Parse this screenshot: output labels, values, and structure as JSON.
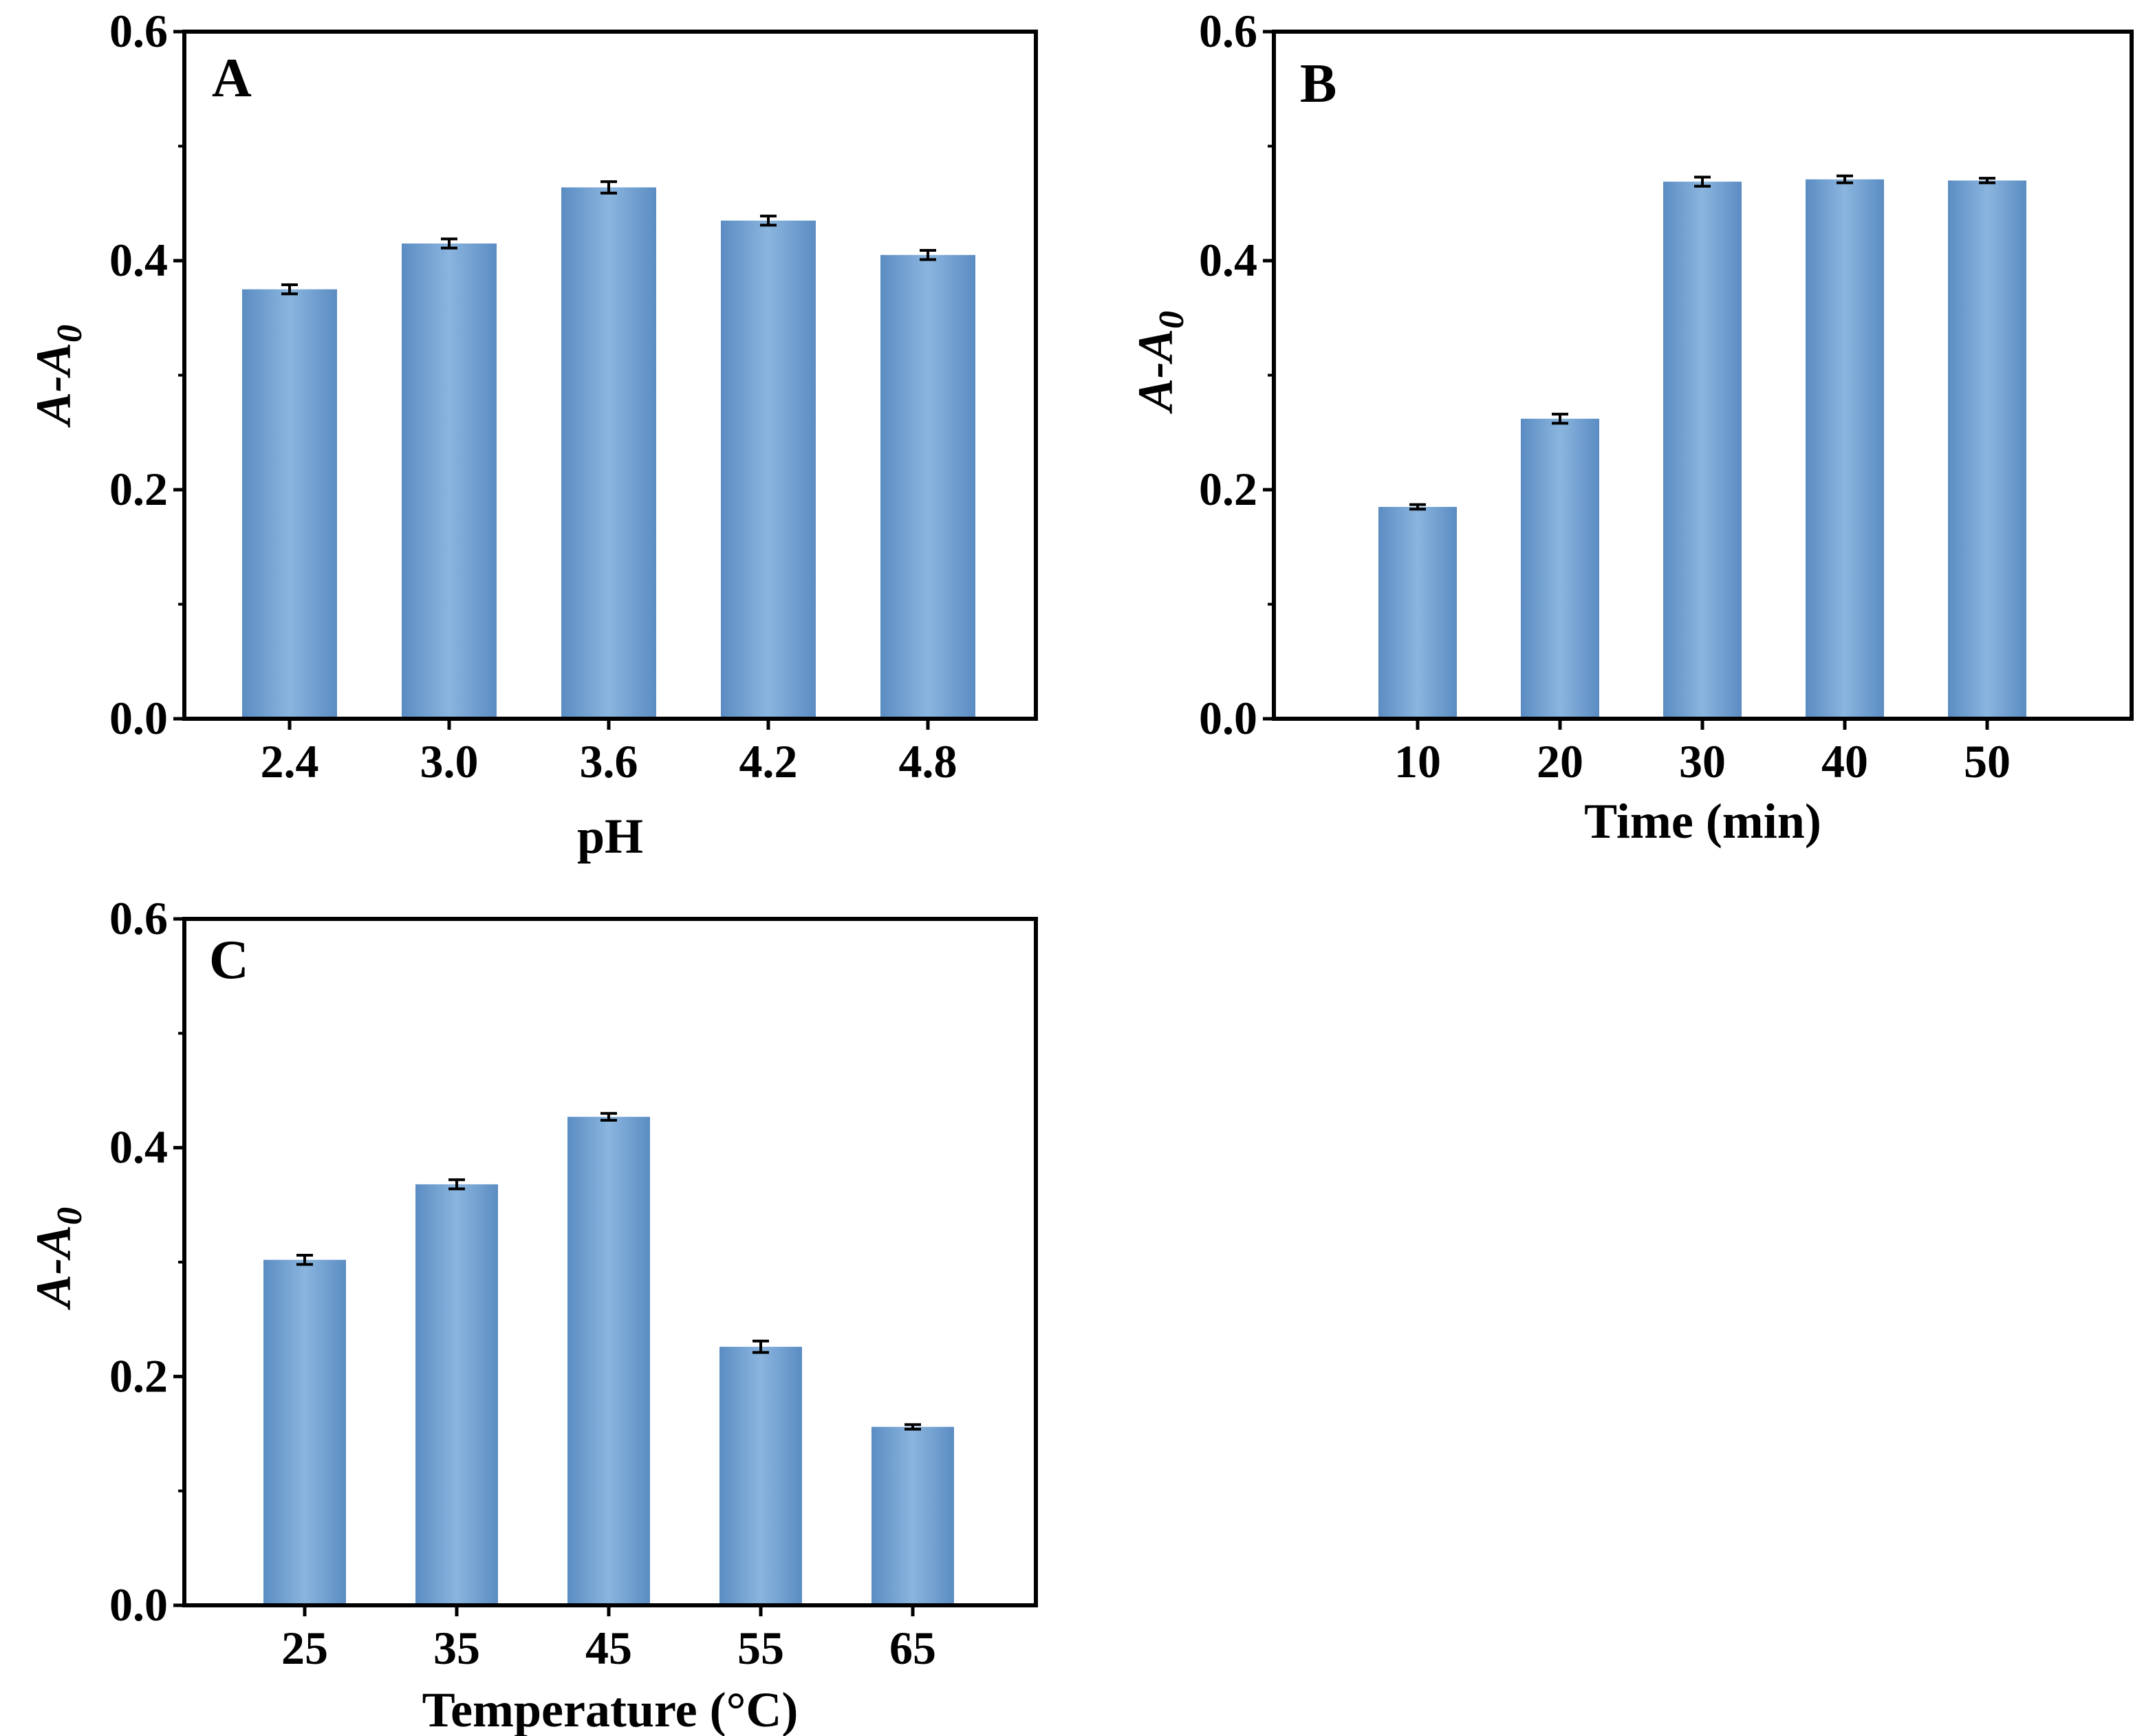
{
  "figure": {
    "bar_color": "#6e9fd1",
    "bar_edge_color": "#5b8cc2",
    "bar_highlight": "#8ab5df",
    "axis_color": "#000000",
    "error_color": "#000000"
  },
  "chart_data": [
    {
      "panel": "A",
      "type": "bar",
      "categories": [
        "2.4",
        "3.0",
        "3.6",
        "4.2",
        "4.8"
      ],
      "values": [
        0.375,
        0.415,
        0.464,
        0.435,
        0.405
      ],
      "errors": [
        0.004,
        0.004,
        0.005,
        0.004,
        0.004
      ],
      "xlabel": "pH",
      "ylabel_main": "A-A",
      "ylabel_sub": "0",
      "ylim": [
        0,
        0.6
      ],
      "yticks": [
        "0.0",
        "0.2",
        "0.4",
        "0.6"
      ],
      "grid": false
    },
    {
      "panel": "B",
      "type": "bar",
      "categories": [
        "10",
        "20",
        "30",
        "40",
        "50"
      ],
      "values": [
        0.185,
        0.262,
        0.469,
        0.471,
        0.47
      ],
      "errors": [
        0.002,
        0.004,
        0.004,
        0.003,
        0.002
      ],
      "xlabel": "Time (min)",
      "ylabel_main": "A-A",
      "ylabel_sub": "0",
      "ylim": [
        0,
        0.6
      ],
      "yticks": [
        "0.0",
        "0.2",
        "0.4",
        "0.6"
      ],
      "grid": false
    },
    {
      "panel": "C",
      "type": "bar",
      "categories": [
        "25",
        "35",
        "45",
        "55",
        "65"
      ],
      "values": [
        0.302,
        0.368,
        0.427,
        0.226,
        0.156
      ],
      "errors": [
        0.004,
        0.004,
        0.003,
        0.005,
        0.002
      ],
      "xlabel": "Temperature (°C)",
      "ylabel_main": "A-A",
      "ylabel_sub": "0",
      "ylim": [
        0,
        0.6
      ],
      "yticks": [
        "0.0",
        "0.2",
        "0.4",
        "0.6"
      ],
      "grid": false
    }
  ]
}
